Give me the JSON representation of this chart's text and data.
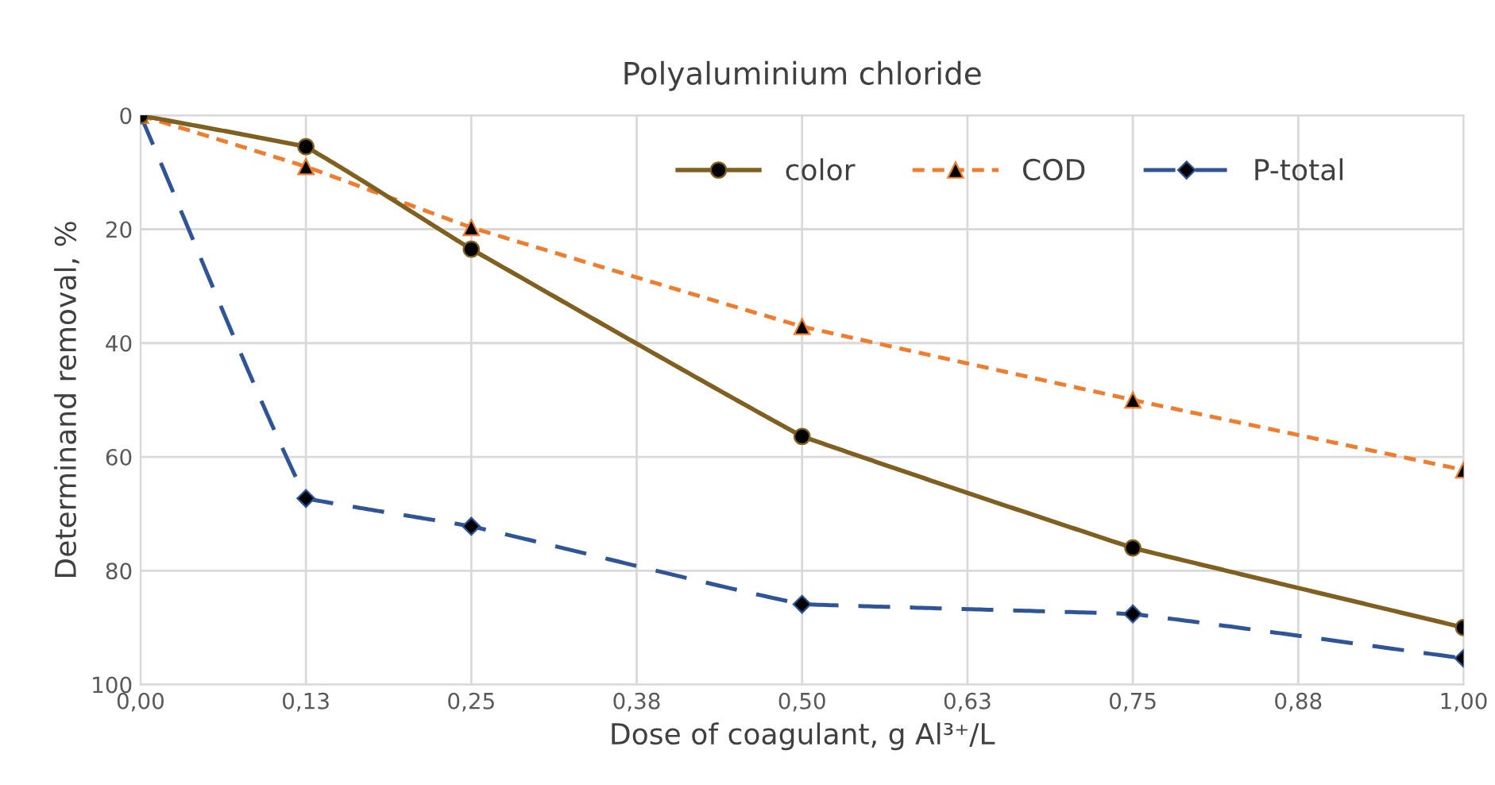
{
  "chart_data": {
    "type": "line",
    "title": "Polyaluminium chloride",
    "xlabel": "Dose of coagulant, g Al³⁺/L",
    "ylabel": "Determinand removal, %",
    "x": [
      0,
      0.125,
      0.25,
      0.5,
      0.75,
      1.0
    ],
    "series": [
      {
        "name": "color",
        "color": "#7f6020",
        "marker": "circle",
        "line_style": "solid",
        "values": [
          0,
          5.5,
          23.5,
          56.4,
          76.0,
          90.0
        ]
      },
      {
        "name": "COD",
        "color": "#ed7d31",
        "marker": "triangle",
        "line_style": "dotted",
        "values": [
          0,
          9.0,
          19.7,
          37.1,
          50.0,
          62.3
        ]
      },
      {
        "name": "P-total",
        "color": "#2f5597",
        "marker": "diamond",
        "line_style": "dashed",
        "values": [
          0,
          67.3,
          72.2,
          85.9,
          87.6,
          95.4
        ]
      }
    ],
    "xlim": [
      0,
      1.0
    ],
    "ylim": [
      100,
      0
    ],
    "xticks": [
      {
        "value": 0,
        "label": "0,00"
      },
      {
        "value": 0.125,
        "label": "0,13"
      },
      {
        "value": 0.25,
        "label": "0,25"
      },
      {
        "value": 0.375,
        "label": "0,38"
      },
      {
        "value": 0.5,
        "label": "0,50"
      },
      {
        "value": 0.625,
        "label": "0,63"
      },
      {
        "value": 0.75,
        "label": "0,75"
      },
      {
        "value": 0.875,
        "label": "0,88"
      },
      {
        "value": 1.0,
        "label": "1,00"
      }
    ],
    "yticks": [
      0,
      20,
      40,
      60,
      80,
      100
    ],
    "grid": true,
    "legend": "top right"
  }
}
